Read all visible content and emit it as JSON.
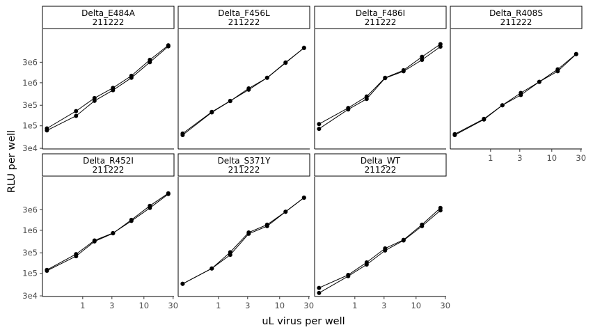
{
  "chart_data": {
    "type": "line",
    "xlabel": "uL virus per well",
    "ylabel": "RLU per well",
    "x_scale": "log",
    "y_scale": "log",
    "xlim": [
      0.22,
      31
    ],
    "ylim": [
      29000,
      17500000
    ],
    "x_ticks": [
      {
        "value": 1,
        "label": "1"
      },
      {
        "value": 3,
        "label": "3"
      },
      {
        "value": 10,
        "label": "10"
      },
      {
        "value": 30,
        "label": "30"
      }
    ],
    "y_ticks": [
      {
        "value": 30000,
        "label": "3e4"
      },
      {
        "value": 100000,
        "label": "1e5"
      },
      {
        "value": 300000,
        "label": "3e5"
      },
      {
        "value": 1000000,
        "label": "1e6"
      },
      {
        "value": 3000000,
        "label": "3e6"
      }
    ],
    "x": [
      0.26,
      0.78,
      1.56,
      3.12,
      6.25,
      12.5,
      25
    ],
    "panels": [
      {
        "title": "Delta_E484A",
        "subtitle": "211222",
        "series": [
          {
            "values": [
              87000,
              220000,
              440000,
              760000,
              1450000,
              3400000,
              7400000
            ]
          },
          {
            "values": [
              78000,
              170000,
              380000,
              670000,
              1300000,
              3000000,
              7000000
            ]
          }
        ]
      },
      {
        "title": "Delta_F456L",
        "subtitle": "211222",
        "series": [
          {
            "values": [
              66000,
              210000,
              380000,
              690000,
              1300000,
              2900000,
              6500000
            ]
          },
          {
            "values": [
              61000,
              205000,
              375000,
              740000,
              1300000,
              2950000,
              6400000
            ]
          }
        ]
      },
      {
        "title": "Delta_F486I",
        "subtitle": "211222",
        "series": [
          {
            "values": [
              110000,
              260000,
              480000,
              1300000,
              1950000,
              4000000,
              7900000
            ]
          },
          {
            "values": [
              85000,
              240000,
              420000,
              1280000,
              1850000,
              3400000,
              6900000
            ]
          }
        ]
      },
      {
        "title": "Delta_R408S",
        "subtitle": "211222",
        "series": [
          {
            "values": [
              64000,
              145000,
              300000,
              580000,
              1050000,
              2050000,
              4650000
            ]
          },
          {
            "values": [
              61000,
              140000,
              300000,
              520000,
              1050000,
              1850000,
              4600000
            ]
          }
        ]
      },
      {
        "title": "Delta_R452I",
        "subtitle": "211222",
        "series": [
          {
            "values": [
              120000,
              280000,
              580000,
              860000,
              1650000,
              3300000,
              6950000
            ]
          },
          {
            "values": [
              115000,
              250000,
              550000,
              850000,
              1750000,
              3700000,
              7250000
            ]
          }
        ]
      },
      {
        "title": "Delta_S371Y",
        "subtitle": "211222",
        "series": [
          {
            "values": [
              57000,
              130000,
              310000,
              890000,
              1350000,
              2700000,
              5750000
            ]
          },
          {
            "values": [
              57000,
              130000,
              270000,
              830000,
              1250000,
              2700000,
              5700000
            ]
          }
        ]
      },
      {
        "title": "Delta_WT",
        "subtitle": "211222",
        "series": [
          {
            "values": [
              46000,
              92000,
              180000,
              380000,
              600000,
              1350000,
              3300000
            ]
          },
          {
            "values": [
              35000,
              86000,
              160000,
              340000,
              580000,
              1250000,
              2900000
            ]
          }
        ]
      }
    ]
  }
}
